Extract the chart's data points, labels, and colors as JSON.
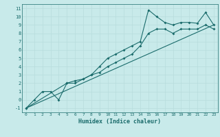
{
  "xlabel": "Humidex (Indice chaleur)",
  "background_color": "#c8eaea",
  "line_color": "#1a6b6b",
  "grid_color": "#b8dcdc",
  "xlim": [
    -0.5,
    23.5
  ],
  "ylim": [
    -1.5,
    11.5
  ],
  "xticks": [
    0,
    1,
    2,
    3,
    4,
    5,
    6,
    7,
    8,
    9,
    10,
    11,
    12,
    13,
    14,
    15,
    16,
    17,
    18,
    19,
    20,
    21,
    22,
    23
  ],
  "yticks": [
    -1,
    0,
    1,
    2,
    3,
    4,
    5,
    6,
    7,
    8,
    9,
    10,
    11
  ],
  "line1_x": [
    0,
    1,
    2,
    3,
    4,
    5,
    6,
    7,
    8,
    9,
    10,
    11,
    12,
    13,
    14,
    15,
    16,
    17,
    18,
    19,
    20,
    21,
    22,
    23
  ],
  "line1_y": [
    -1,
    0,
    1,
    1,
    0,
    2,
    2,
    2.5,
    3,
    4,
    5,
    5.5,
    6,
    6.5,
    7,
    10.8,
    10,
    9.3,
    9,
    9.3,
    9.3,
    9.2,
    10.5,
    9
  ],
  "line2_x": [
    0,
    5,
    6,
    7,
    8,
    9,
    10,
    11,
    12,
    13,
    14,
    15,
    16,
    17,
    18,
    19,
    20,
    21,
    22,
    23
  ],
  "line2_y": [
    -1,
    2,
    2.3,
    2.5,
    3,
    3.3,
    4,
    4.5,
    5,
    5.5,
    6.5,
    8,
    8.5,
    8.5,
    8,
    8.5,
    8.5,
    8.5,
    9,
    8.5
  ],
  "line3_x": [
    0,
    23
  ],
  "line3_y": [
    -1,
    9
  ],
  "marker_size": 2.0,
  "line_width": 0.8,
  "xlabel_fontsize": 6,
  "tick_fontsize": 4.5
}
